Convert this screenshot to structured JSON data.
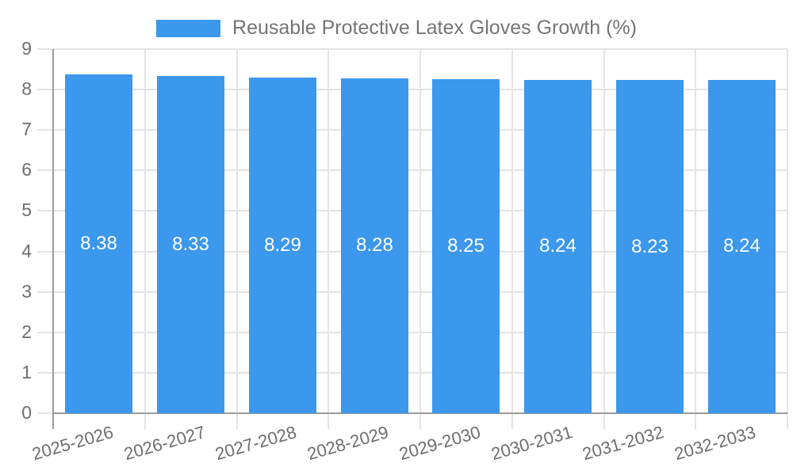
{
  "legend": {
    "label": "Reusable Protective Latex Gloves Growth (%)"
  },
  "colors": {
    "bar": "#3B98EC",
    "grid": "#E4E4E4",
    "axis": "#9B9B9B",
    "axis_label": "#6E6E6E",
    "legend_text": "#757575",
    "value_label": "#FFFFFF",
    "background": "#FFFFFF"
  },
  "chart_data": {
    "type": "bar",
    "title": "",
    "xlabel": "",
    "ylabel": "",
    "categories": [
      "2025-2026",
      "2026-2027",
      "2027-2028",
      "2028-2029",
      "2029-2030",
      "2030-2031",
      "2031-2032",
      "2032-2033"
    ],
    "series": [
      {
        "name": "Reusable Protective Latex Gloves Growth (%)",
        "values": [
          8.38,
          8.33,
          8.29,
          8.28,
          8.25,
          8.24,
          8.23,
          8.24
        ]
      }
    ],
    "value_labels": [
      "8.38",
      "8.33",
      "8.29",
      "8.28",
      "8.25",
      "8.24",
      "8.23",
      "8.24"
    ],
    "ylim": [
      0,
      9
    ],
    "y_ticks": [
      0,
      1,
      2,
      3,
      4,
      5,
      6,
      7,
      8,
      9
    ],
    "grid": true,
    "legend_position": "top-center",
    "x_label_rotation_deg": -16,
    "value_label_position": "inside-center"
  }
}
